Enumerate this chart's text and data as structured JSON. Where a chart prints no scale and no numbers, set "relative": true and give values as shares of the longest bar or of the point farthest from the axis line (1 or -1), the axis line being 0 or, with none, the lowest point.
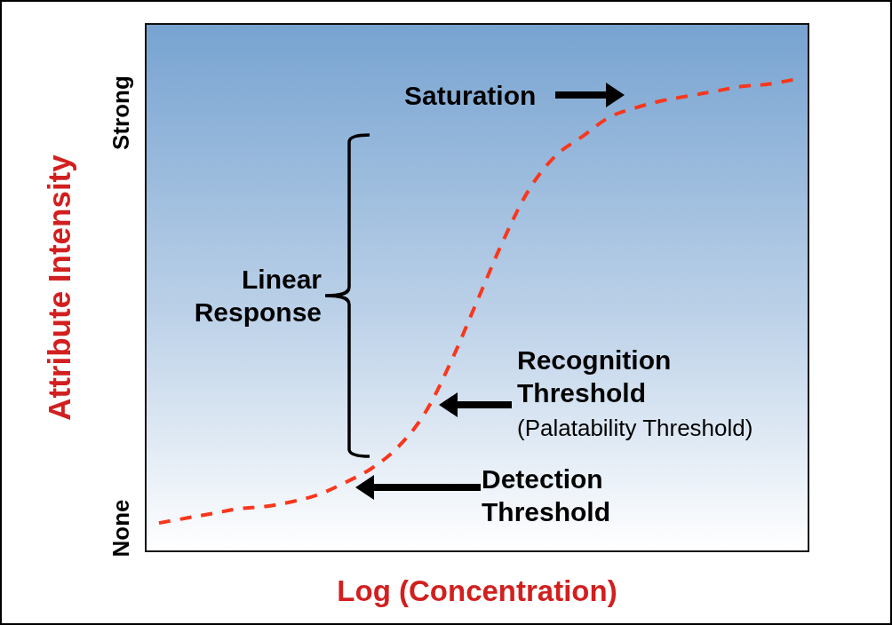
{
  "chart_data": {
    "type": "line",
    "xlabel": "Log (Concentration)",
    "ylabel": "Attribute Intensity",
    "relative": true,
    "categories": [
      null,
      null,
      null,
      null,
      null,
      null,
      null,
      null,
      null,
      null,
      null,
      null,
      null,
      null,
      null,
      null,
      null,
      null,
      null,
      null,
      null,
      null,
      null,
      null,
      null
    ],
    "series": [
      {
        "color": "#f8371c",
        "values": [
          0.06,
          0.07,
          0.08,
          0.09,
          0.095,
          0.105,
          0.12,
          0.145,
          0.175,
          0.22,
          0.29,
          0.4,
          0.53,
          0.66,
          0.77,
          0.84,
          0.88,
          0.92,
          0.94,
          0.955,
          0.965,
          0.975,
          0.985,
          0.99,
          1
        ]
      }
    ],
    "grid": false,
    "marker": "none",
    "line_style": "dashed",
    "annotations": [
      "Saturation",
      "Linear Response",
      "Recognition Threshold",
      "(Palatability Threshold)",
      "Detection Threshold",
      "Strong",
      "None"
    ]
  }
}
